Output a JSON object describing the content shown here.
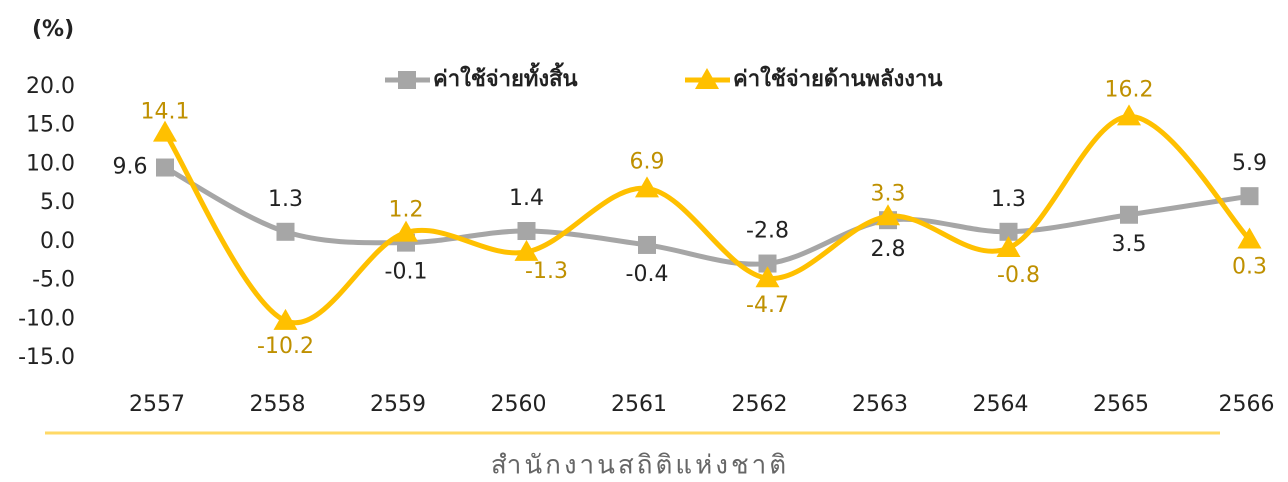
{
  "chart_data": {
    "type": "line",
    "y_label": "(%)",
    "footer": "สำนักงานสถิติแห่งชาติ",
    "categories": [
      "2557",
      "2558",
      "2559",
      "2560",
      "2561",
      "2562",
      "2563",
      "2564",
      "2565",
      "2566"
    ],
    "series": [
      {
        "name": "ค่าใช้จ่ายทั้งสิ้น",
        "color": "#a6a6a6",
        "label_color": "#222222",
        "marker": "square",
        "values": [
          9.6,
          1.3,
          -0.1,
          1.4,
          -0.4,
          -2.8,
          2.8,
          1.3,
          3.5,
          5.9
        ]
      },
      {
        "name": "ค่าใช้จ่ายด้านพลังงาน",
        "color": "#ffc000",
        "label_color": "#bf9000",
        "marker": "triangle",
        "values": [
          14.1,
          -10.2,
          1.2,
          -1.3,
          6.9,
          -4.7,
          3.3,
          -0.8,
          16.2,
          0.3
        ]
      }
    ],
    "ylim": [
      -15,
      20
    ],
    "yticks": [
      {
        "value": 20,
        "label": "20.0"
      },
      {
        "value": 15,
        "label": "15.0"
      },
      {
        "value": 10,
        "label": "10.0"
      },
      {
        "value": 5,
        "label": "5.0"
      },
      {
        "value": 0,
        "label": "0.0"
      },
      {
        "value": -5,
        "label": "-5.0"
      },
      {
        "value": -10,
        "label": "-10.0"
      },
      {
        "value": -15,
        "label": "-15.0"
      }
    ],
    "grid": false
  }
}
